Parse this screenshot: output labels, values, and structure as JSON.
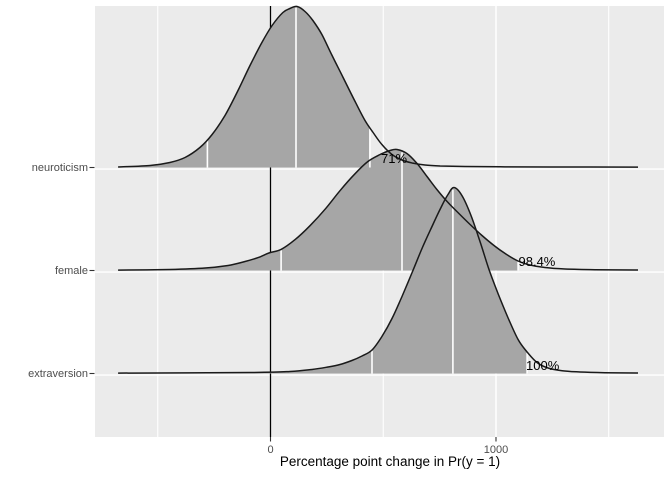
{
  "chart_data": {
    "type": "ridgeline",
    "title": "",
    "xlabel": "Percentage point change in Pr(y = 1)",
    "x_axis": {
      "ticks": [
        {
          "value": 0,
          "label": "0"
        },
        {
          "value": 1000,
          "label": "1000"
        }
      ],
      "minor_ticks": [
        -500,
        500,
        1500
      ],
      "range": [
        -778,
        1745
      ]
    },
    "reference_line_x": 0,
    "grid": true,
    "legend": false,
    "rows": [
      {
        "label": "neuroticism",
        "pr_positive_label": "71%",
        "quantiles": {
          "q025": -280,
          "q500": 113,
          "q975": 441
        },
        "density": [
          [
            -676,
            0.005
          ],
          [
            -534,
            0.019
          ],
          [
            -446,
            0.049
          ],
          [
            -379,
            0.097
          ],
          [
            -313,
            0.194
          ],
          [
            -259,
            0.32
          ],
          [
            -202,
            0.505
          ],
          [
            -144,
            0.748
          ],
          [
            -91,
            0.99
          ],
          [
            -38,
            1.214
          ],
          [
            7,
            1.379
          ],
          [
            55,
            1.505
          ],
          [
            86,
            1.544
          ],
          [
            118,
            1.563
          ],
          [
            153,
            1.515
          ],
          [
            188,
            1.427
          ],
          [
            228,
            1.291
          ],
          [
            273,
            1.087
          ],
          [
            322,
            0.874
          ],
          [
            375,
            0.641
          ],
          [
            419,
            0.456
          ],
          [
            455,
            0.34
          ],
          [
            494,
            0.223
          ],
          [
            539,
            0.126
          ],
          [
            583,
            0.073
          ],
          [
            628,
            0.044
          ],
          [
            685,
            0.024
          ],
          [
            752,
            0.015
          ],
          [
            863,
            0.01
          ],
          [
            1018,
            0.007
          ],
          [
            1240,
            0.005
          ],
          [
            1630,
            0.004
          ]
        ]
      },
      {
        "label": "female",
        "pr_positive_label": "98.4%",
        "quantiles": {
          "q025": 47,
          "q500": 583,
          "q975": 1098
        },
        "density": [
          [
            -676,
            0.004
          ],
          [
            -446,
            0.01
          ],
          [
            -290,
            0.024
          ],
          [
            -188,
            0.049
          ],
          [
            -113,
            0.087
          ],
          [
            -55,
            0.125
          ],
          [
            -7,
            0.17
          ],
          [
            47,
            0.205
          ],
          [
            109,
            0.3
          ],
          [
            175,
            0.435
          ],
          [
            242,
            0.595
          ],
          [
            308,
            0.775
          ],
          [
            375,
            0.94
          ],
          [
            432,
            1.058
          ],
          [
            486,
            1.126
          ],
          [
            530,
            1.165
          ],
          [
            561,
            1.175
          ],
          [
            605,
            1.136
          ],
          [
            650,
            1.039
          ],
          [
            694,
            0.913
          ],
          [
            738,
            0.786
          ],
          [
            783,
            0.67
          ],
          [
            831,
            0.563
          ],
          [
            885,
            0.447
          ],
          [
            938,
            0.34
          ],
          [
            991,
            0.243
          ],
          [
            1044,
            0.16
          ],
          [
            1098,
            0.092
          ],
          [
            1151,
            0.053
          ],
          [
            1217,
            0.029
          ],
          [
            1306,
            0.015
          ],
          [
            1439,
            0.008
          ],
          [
            1630,
            0.005
          ]
        ]
      },
      {
        "label": "extraversion",
        "pr_positive_label": "100%",
        "quantiles": {
          "q025": 450,
          "q500": 809,
          "q975": 1138
        },
        "density": [
          [
            -676,
            0.004
          ],
          [
            -91,
            0.01
          ],
          [
            86,
            0.019
          ],
          [
            184,
            0.039
          ],
          [
            255,
            0.063
          ],
          [
            308,
            0.087
          ],
          [
            361,
            0.126
          ],
          [
            406,
            0.17
          ],
          [
            450,
            0.228
          ],
          [
            494,
            0.359
          ],
          [
            539,
            0.534
          ],
          [
            583,
            0.748
          ],
          [
            628,
            0.981
          ],
          [
            672,
            1.214
          ],
          [
            716,
            1.427
          ],
          [
            756,
            1.612
          ],
          [
            787,
            1.738
          ],
          [
            814,
            1.806
          ],
          [
            849,
            1.728
          ],
          [
            889,
            1.534
          ],
          [
            929,
            1.282
          ],
          [
            969,
            1.01
          ],
          [
            1009,
            0.777
          ],
          [
            1053,
            0.544
          ],
          [
            1098,
            0.33
          ],
          [
            1138,
            0.209
          ],
          [
            1182,
            0.107
          ],
          [
            1231,
            0.053
          ],
          [
            1293,
            0.027
          ],
          [
            1373,
            0.015
          ],
          [
            1483,
            0.008
          ],
          [
            1630,
            0.005
          ]
        ]
      }
    ],
    "colors": {
      "panel": "#EBEBEB",
      "grid": "#FFFFFF",
      "density_fill": "#A6A6A6",
      "density_line": "#1A1A1A",
      "quantile_line": "#FFFFFF",
      "reference_line": "#000000",
      "axis_text": "#4D4D4D",
      "axis_title": "#000000",
      "tick_mark": "#333333"
    }
  }
}
